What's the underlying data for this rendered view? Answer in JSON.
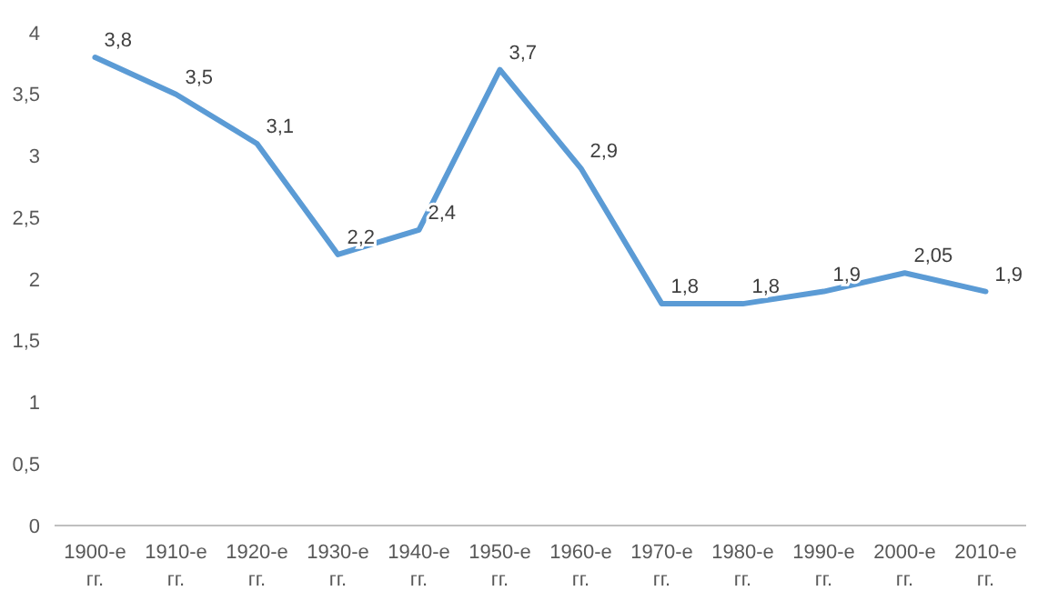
{
  "chart_data": {
    "type": "line",
    "categories": [
      "1900-е гг.",
      "1910-е гг.",
      "1920-е гг.",
      "1930-е гг.",
      "1940-е гг.",
      "1950-е гг.",
      "1960-е гг.",
      "1970-е гг.",
      "1980-е гг.",
      "1990-е гг.",
      "2000-е гг.",
      "2010-е гг."
    ],
    "series": [
      {
        "color": "#5b9bd5",
        "values": [
          3.8,
          3.5,
          3.1,
          2.2,
          2.4,
          3.7,
          2.9,
          1.8,
          1.8,
          1.9,
          2.05,
          1.9
        ],
        "value_labels": [
          "3,8",
          "3,5",
          "3,1",
          "2,2",
          "2,4",
          "3,7",
          "2,9",
          "1,8",
          "1,8",
          "1,9",
          "2,05",
          "1,9"
        ]
      }
    ],
    "ylim": [
      0,
      4
    ],
    "yticks": [
      0,
      {
        "value": 0.5,
        "label": "0,5"
      },
      1,
      {
        "value": 1.5,
        "label": "1,5"
      },
      2,
      {
        "value": 2.5,
        "label": "2,5"
      },
      3,
      {
        "value": 3.5,
        "label": "3,5"
      },
      4
    ],
    "grid": false,
    "marker": "none",
    "line_style": "solid"
  }
}
